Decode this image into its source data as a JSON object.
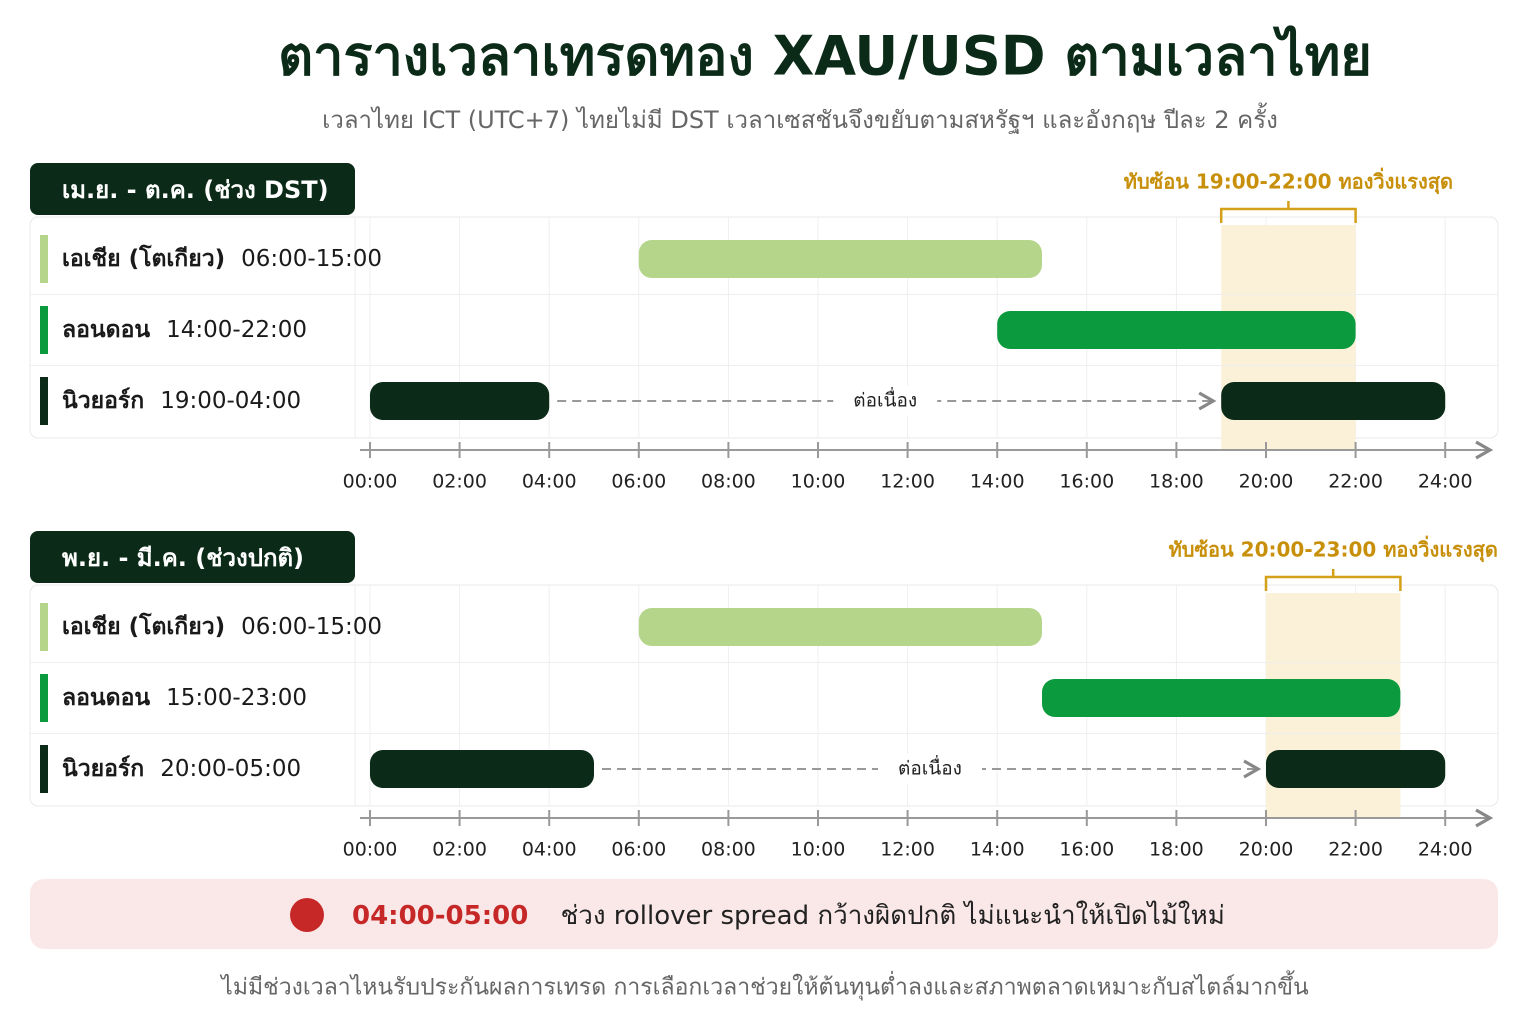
{
  "header": {
    "title": "ตารางเวลาเทรดทอง XAU/USD ตามเวลาไทย",
    "subtitle": "เวลาไทย ICT (UTC+7) ไทยไม่มี DST เวลาเซสชันจึงขยับตามสหรัฐฯ และอังกฤษ ปีละ 2 ครั้ง"
  },
  "chart_data": [
    {
      "type": "gantt",
      "title": "เม.ย. - ต.ค. (ช่วง DST)",
      "series": [
        {
          "name": "เอเชีย (โตเกียว)",
          "range_label": "06:00-15:00",
          "color": "#b5d68a",
          "start": 6,
          "end": 15
        },
        {
          "name": "ลอนดอน",
          "range_label": "14:00-22:00",
          "color": "#0c9a3f",
          "start": 14,
          "end": 22
        },
        {
          "name": "นิวยอร์ก",
          "range_label": "19:00-04:00",
          "color": "#0b2a17",
          "start": 19,
          "end": 4,
          "wrap_label": "ต่อเนื่อง"
        }
      ],
      "overlap": {
        "label": "ทับซ้อน 19:00-22:00 ทองวิ่งแรงสุด",
        "start": 19,
        "end": 22
      },
      "xlim": [
        0,
        25
      ],
      "xticks": [
        {
          "value": 0,
          "label": "00:00"
        },
        {
          "value": 2,
          "label": "02:00"
        },
        {
          "value": 4,
          "label": "04:00"
        },
        {
          "value": 6,
          "label": "06:00"
        },
        {
          "value": 8,
          "label": "08:00"
        },
        {
          "value": 10,
          "label": "10:00"
        },
        {
          "value": 12,
          "label": "12:00"
        },
        {
          "value": 14,
          "label": "14:00"
        },
        {
          "value": 16,
          "label": "16:00"
        },
        {
          "value": 18,
          "label": "18:00"
        },
        {
          "value": 20,
          "label": "20:00"
        },
        {
          "value": 22,
          "label": "22:00"
        },
        {
          "value": 24,
          "label": "24:00"
        }
      ],
      "grid": true
    },
    {
      "type": "gantt",
      "title": "พ.ย. - มี.ค. (ช่วงปกติ)",
      "series": [
        {
          "name": "เอเชีย (โตเกียว)",
          "range_label": "06:00-15:00",
          "color": "#b5d68a",
          "start": 6,
          "end": 15
        },
        {
          "name": "ลอนดอน",
          "range_label": "15:00-23:00",
          "color": "#0c9a3f",
          "start": 15,
          "end": 23
        },
        {
          "name": "นิวยอร์ก",
          "range_label": "20:00-05:00",
          "color": "#0b2a17",
          "start": 20,
          "end": 5,
          "wrap_label": "ต่อเนื่อง"
        }
      ],
      "overlap": {
        "label": "ทับซ้อน 20:00-23:00 ทองวิ่งแรงสุด",
        "start": 20,
        "end": 23
      },
      "xlim": [
        0,
        25
      ],
      "xticks": [
        {
          "value": 0,
          "label": "00:00"
        },
        {
          "value": 2,
          "label": "02:00"
        },
        {
          "value": 4,
          "label": "04:00"
        },
        {
          "value": 6,
          "label": "06:00"
        },
        {
          "value": 8,
          "label": "08:00"
        },
        {
          "value": 10,
          "label": "10:00"
        },
        {
          "value": 12,
          "label": "12:00"
        },
        {
          "value": 14,
          "label": "14:00"
        },
        {
          "value": 16,
          "label": "16:00"
        },
        {
          "value": 18,
          "label": "18:00"
        },
        {
          "value": 20,
          "label": "20:00"
        },
        {
          "value": 22,
          "label": "22:00"
        },
        {
          "value": 24,
          "label": "24:00"
        }
      ],
      "grid": true
    }
  ],
  "alert": {
    "time": "04:00-05:00",
    "text": "ช่วง rollover spread กว้างผิดปกติ ไม่แนะนำให้เปิดไม้ใหม่"
  },
  "footnote": "ไม่มีช่วงเวลาไหนรับประกันผลการเทรด การเลือกเวลาช่วยให้ต้นทุนต่ำลงและสภาพตลาดเหมาะกับสไตล์มากขึ้น"
}
